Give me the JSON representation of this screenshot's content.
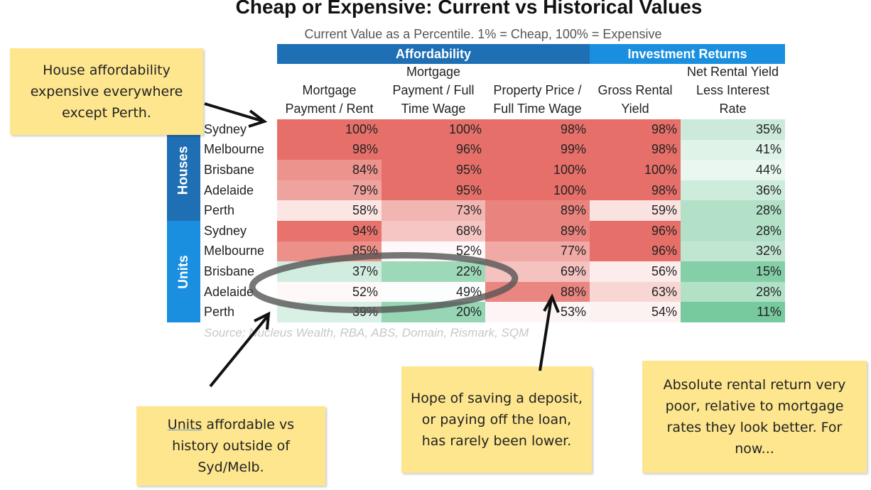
{
  "title": "Cheap or Expensive: Current vs Historical Values",
  "subtitle": "Current Value as a Percentile. 1% = Cheap, 100% = Expensive",
  "table": {
    "groups": [
      "Affordability",
      "Investment Returns"
    ],
    "columns": [
      "Mortgage Payment / Rent",
      "Mortgage Payment / Full Time Wage",
      "Property Price / Full Time Wage",
      "Gross Rental Yield",
      "Net Rental Yield Less Interest Rate"
    ],
    "row_groups": [
      "Houses",
      "Units"
    ],
    "rows": [
      [
        "Sydney",
        "100%",
        "100%",
        "98%",
        "98%",
        "35%"
      ],
      [
        "Melbourne",
        "98%",
        "96%",
        "99%",
        "98%",
        "41%"
      ],
      [
        "Brisbane",
        "84%",
        "95%",
        "100%",
        "100%",
        "44%"
      ],
      [
        "Adelaide",
        "79%",
        "95%",
        "100%",
        "98%",
        "36%"
      ],
      [
        "Perth",
        "58%",
        "73%",
        "89%",
        "59%",
        "28%"
      ],
      [
        "Sydney",
        "94%",
        "68%",
        "89%",
        "96%",
        "28%"
      ],
      [
        "Melbourne",
        "85%",
        "52%",
        "77%",
        "96%",
        "32%"
      ],
      [
        "Brisbane",
        "37%",
        "22%",
        "69%",
        "56%",
        "15%"
      ],
      [
        "Adelaide",
        "52%",
        "49%",
        "88%",
        "63%",
        "28%"
      ],
      [
        "Perth",
        "39%",
        "20%",
        "53%",
        "54%",
        "11%"
      ]
    ]
  },
  "source": "Source: Nucleus Wealth, RBA, ABS, Domain, Rismark, SQM",
  "notes": [
    {
      "text": "House affordability expensive everywhere except Perth."
    },
    {
      "emphasis": "Units",
      "text": "affordable vs history outside of Syd/Melb."
    },
    {
      "text": "Hope of saving a deposit, or paying off the loan, has rarely been lower."
    },
    {
      "text": "Absolute rental return very poor, relative to mortgage rates they look better. For now..."
    }
  ]
}
